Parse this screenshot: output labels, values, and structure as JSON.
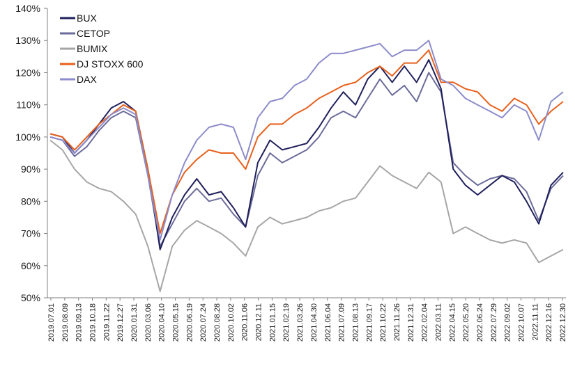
{
  "chart_data": {
    "type": "line",
    "title": "",
    "xlabel": "",
    "ylabel": "",
    "ylim": [
      50,
      140
    ],
    "y_ticks": [
      50,
      60,
      70,
      80,
      90,
      100,
      110,
      120,
      130,
      140
    ],
    "y_tick_labels": [
      "50%",
      "60%",
      "70%",
      "80%",
      "90%",
      "100%",
      "110%",
      "120%",
      "130%",
      "140%"
    ],
    "y_grid": false,
    "legend_position": "top-left",
    "x_tick_labels": [
      "2019.07.01",
      "2019.08.09",
      "2019.09.13",
      "2019.10.18",
      "2019.11.22",
      "2019.12.27",
      "2020.01.31",
      "2020.03.06",
      "2020.04.10",
      "2020.05.15",
      "2020.06.19",
      "2020.07.24",
      "2020.08.28",
      "2020.10.02",
      "2020.11.06",
      "2020.12.11",
      "2021.01.15",
      "2021.02.19",
      "2021.03.26",
      "2021.04.30",
      "2021.06.04",
      "2021.07.09",
      "2021.08.13",
      "2021.09.17",
      "2021.10.22",
      "2021.11.26",
      "2021.12.31",
      "2022.02.04",
      "2022.03.11",
      "2022.04.15",
      "2022.05.20",
      "2022.06.24",
      "2022.07.29",
      "2022.09.02",
      "2022.10.07",
      "2022.11.11",
      "2022.12.16",
      "2022.12.30"
    ],
    "x": [
      "2019.07",
      "2019.08",
      "2019.09",
      "2019.10",
      "2019.11",
      "2019.12",
      "2020.01",
      "2020.02",
      "2020.03a",
      "2020.03b",
      "2020.04",
      "2020.05",
      "2020.06",
      "2020.07",
      "2020.08",
      "2020.09",
      "2020.10",
      "2020.11",
      "2020.12",
      "2021.01",
      "2021.02",
      "2021.03",
      "2021.04",
      "2021.05",
      "2021.06",
      "2021.07",
      "2021.08",
      "2021.09",
      "2021.10",
      "2021.11",
      "2021.12",
      "2022.01",
      "2022.02",
      "2022.03",
      "2022.04",
      "2022.05",
      "2022.06",
      "2022.07",
      "2022.08",
      "2022.09",
      "2022.10",
      "2022.11",
      "2022.12"
    ],
    "series": [
      {
        "name": "BUX",
        "color": "#1f1f5c",
        "values": [
          101,
          100,
          95,
          99,
          104,
          109,
          111,
          108,
          90,
          65,
          75,
          82,
          87,
          82,
          83,
          78,
          72,
          92,
          99,
          96,
          97,
          98,
          103,
          109,
          114,
          110,
          118,
          122,
          117,
          122,
          117,
          124,
          115,
          90,
          85,
          82,
          85,
          88,
          86,
          80,
          73,
          85,
          89
        ]
      },
      {
        "name": "CETOP",
        "color": "#6b6b9a",
        "values": [
          100,
          99,
          94,
          97,
          102,
          106,
          108,
          106,
          88,
          66,
          73,
          80,
          84,
          80,
          81,
          76,
          72,
          88,
          95,
          92,
          94,
          96,
          100,
          106,
          108,
          106,
          112,
          118,
          113,
          116,
          111,
          120,
          114,
          92,
          88,
          85,
          87,
          88,
          87,
          83,
          74,
          84,
          88
        ]
      },
      {
        "name": "BUMIX",
        "color": "#a6a6a6",
        "values": [
          99,
          96,
          90,
          86,
          84,
          83,
          80,
          76,
          66,
          52,
          66,
          71,
          74,
          72,
          70,
          67,
          63,
          72,
          75,
          73,
          74,
          75,
          77,
          78,
          80,
          81,
          86,
          91,
          88,
          86,
          84,
          89,
          86,
          70,
          72,
          70,
          68,
          67,
          68,
          67,
          61,
          63,
          65
        ]
      },
      {
        "name": "DJ STOXX 600",
        "color": "#e8601c",
        "values": [
          101,
          100,
          96,
          100,
          104,
          107,
          110,
          108,
          90,
          70,
          82,
          89,
          93,
          96,
          95,
          95,
          90,
          100,
          104,
          104,
          107,
          109,
          112,
          114,
          116,
          117,
          120,
          122,
          119,
          123,
          123,
          127,
          117,
          117,
          115,
          114,
          110,
          108,
          112,
          110,
          104,
          108,
          111
        ]
      },
      {
        "name": "DAX",
        "color": "#8c8ccc",
        "values": [
          100,
          99,
          95,
          99,
          103,
          107,
          109,
          107,
          88,
          68,
          82,
          92,
          99,
          103,
          104,
          103,
          93,
          106,
          111,
          112,
          116,
          118,
          123,
          126,
          126,
          127,
          128,
          129,
          125,
          127,
          127,
          130,
          118,
          116,
          112,
          110,
          108,
          106,
          110,
          108,
          99,
          111,
          114
        ]
      }
    ]
  }
}
